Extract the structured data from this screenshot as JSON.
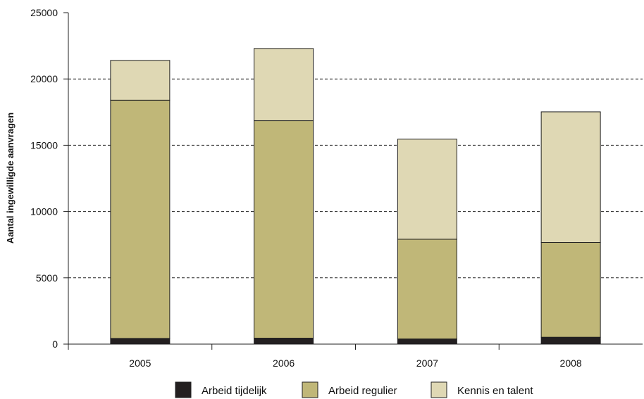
{
  "chart_data": {
    "type": "bar",
    "stacked": true,
    "categories": [
      "2005",
      "2006",
      "2007",
      "2008"
    ],
    "series": [
      {
        "name": "Arbeid tijdelijk",
        "values": [
          430,
          450,
          390,
          520
        ],
        "color": "#231f20"
      },
      {
        "name": "Arbeid regulier",
        "values": [
          17970,
          16400,
          7520,
          7150
        ],
        "color": "#c0b778"
      },
      {
        "name": "Kennis en talent",
        "values": [
          3000,
          5450,
          7550,
          9850
        ],
        "color": "#dfd8b4"
      }
    ],
    "ylabel": "Aantal ingewilligde aanvragen",
    "xlabel": "",
    "ylim": [
      0,
      25000
    ],
    "yticks": [
      0,
      5000,
      10000,
      15000,
      20000,
      25000
    ],
    "grid": "horizontal dashed",
    "legend_position": "bottom"
  }
}
